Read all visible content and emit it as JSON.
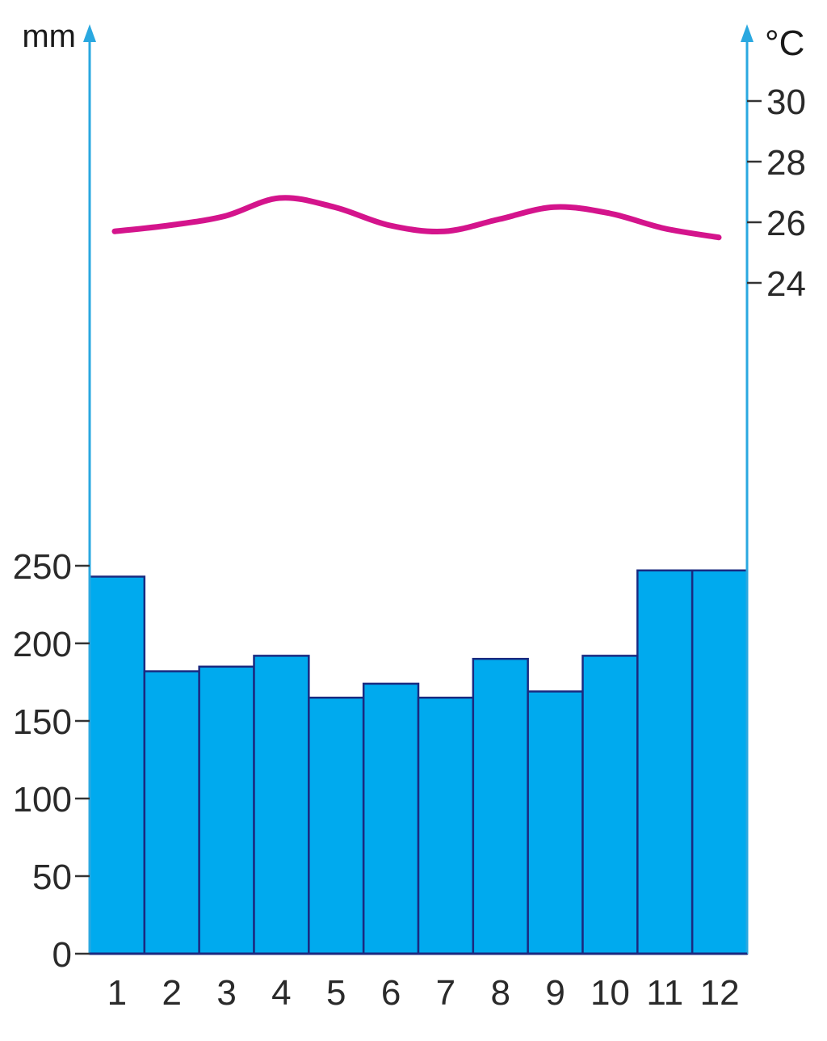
{
  "chart_data": {
    "type": "bar",
    "title": "",
    "categories": [
      "1",
      "2",
      "3",
      "4",
      "5",
      "6",
      "7",
      "8",
      "9",
      "10",
      "11",
      "12"
    ],
    "series": [
      {
        "type": "bar",
        "axis": "left",
        "values": [
          243,
          182,
          185,
          192,
          165,
          174,
          165,
          190,
          169,
          192,
          247,
          247
        ]
      },
      {
        "type": "line",
        "axis": "right",
        "values": [
          25.7,
          25.9,
          26.2,
          26.8,
          26.5,
          25.9,
          25.7,
          26.1,
          26.5,
          26.3,
          25.8,
          25.5
        ]
      }
    ],
    "left_axis": {
      "unit": "mm",
      "ticks": [
        0,
        50,
        100,
        150,
        200,
        250
      ],
      "range": [
        0,
        250
      ]
    },
    "right_axis": {
      "unit": "°C",
      "ticks": [
        24,
        26,
        28,
        30
      ],
      "range": [
        24,
        30
      ]
    },
    "colors": {
      "bar_fill": "#00aaee",
      "bar_stroke": "#1a2a80",
      "line": "#d4148c",
      "axis": "#2aa8e0"
    }
  }
}
